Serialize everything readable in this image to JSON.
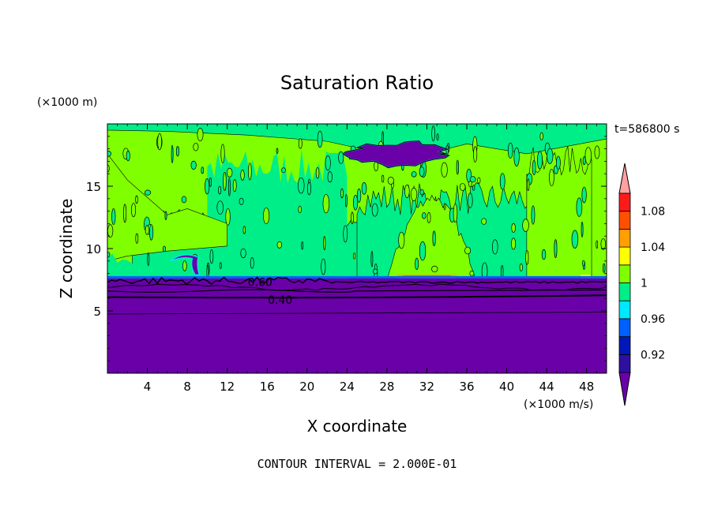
{
  "chart_data": {
    "type": "heatmap",
    "title": "Saturation Ratio",
    "xlabel": "X coordinate",
    "ylabel": "Z coordinate",
    "x_unit": "(×1000 m/s)",
    "y_unit": "(×1000 m)",
    "time_label": "t=586800 s",
    "footer": "CONTOUR INTERVAL = 2.000E-01",
    "xlim": [
      0,
      50
    ],
    "ylim": [
      0,
      20
    ],
    "x_ticks": [
      4,
      8,
      12,
      16,
      20,
      24,
      28,
      32,
      36,
      40,
      44,
      48
    ],
    "y_ticks": [
      5,
      10,
      15
    ],
    "contour_labels": [
      {
        "text": "0.60",
        "x": 15.3,
        "z": 7.3
      },
      {
        "text": "0.40",
        "x": 17.3,
        "z": 5.9
      }
    ],
    "inversion_height_z": 7.6,
    "regions": {
      "dry_layer": {
        "z_range": [
          0,
          7.6
        ],
        "value_range": [
          0.0,
          0.9
        ]
      },
      "upper_layer": {
        "z_range": [
          7.6,
          20
        ],
        "value_range": [
          0.98,
          1.02
        ]
      },
      "dry_patch_upper": {
        "x_range": [
          24,
          34
        ],
        "z_range": [
          16.5,
          18.7
        ],
        "value": 0.9
      },
      "supersaturated_strip": {
        "x_range": [
          29,
          35
        ],
        "z_range": [
          7.6,
          7.9
        ],
        "value": 1.06
      }
    },
    "colorbar": {
      "levels": [
        0.92,
        0.94,
        0.96,
        0.98,
        1.0,
        1.02,
        1.04,
        1.06,
        1.08,
        1.1
      ],
      "tick_labels": [
        "0.92",
        "0.96",
        "1",
        "1.04",
        "1.08"
      ],
      "colors": [
        "#6a00a8",
        "#2e10a0",
        "#0018b8",
        "#0060ff",
        "#00e8ff",
        "#00ee88",
        "#80ff00",
        "#ffff00",
        "#ffa000",
        "#ff5000",
        "#ff1a1a",
        "#ffa0a0"
      ]
    }
  }
}
